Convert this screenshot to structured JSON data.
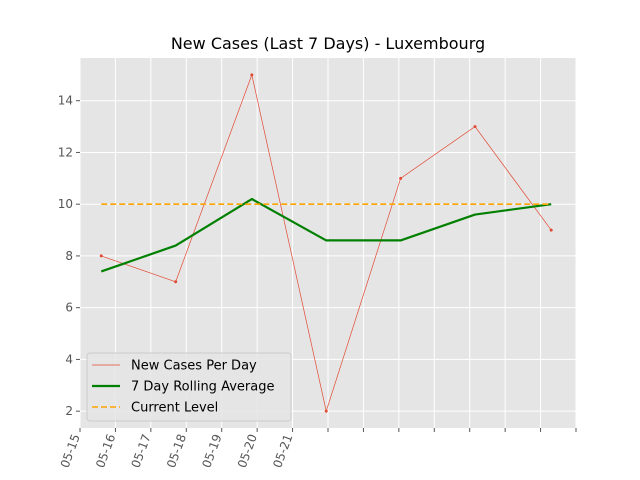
{
  "chart_data": {
    "type": "line",
    "title": "New Cases (Last 7 Days) - Luxembourg",
    "xlabel": "",
    "ylabel": "",
    "x_tick_labels": [
      "05-15",
      "05-16",
      "05-17",
      "05-18",
      "05-19",
      "05-20",
      "05-21"
    ],
    "y_ticks": [
      2,
      4,
      6,
      8,
      10,
      12,
      14
    ],
    "ylim": [
      1.35,
      15.65
    ],
    "grid": true,
    "legend_position": "lower-left",
    "x_day_offsets": [
      0.6,
      2.7,
      4.85,
      6.95,
      9.05,
      11.15,
      13.3
    ],
    "series": [
      {
        "name": "New Cases Per Day",
        "style": "thin-line-with-markers",
        "color": "#e24a33",
        "values": [
          8,
          7,
          15,
          2,
          11,
          13,
          9
        ]
      },
      {
        "name": "7 Day Rolling Average",
        "style": "thick-line",
        "color": "#008000",
        "values": [
          7.4,
          8.4,
          10.2,
          8.6,
          8.6,
          9.6,
          10.0
        ]
      },
      {
        "name": "Current Level",
        "style": "dashed-line",
        "color": "#ffa500",
        "values": [
          10,
          10,
          10,
          10,
          10,
          10,
          10
        ]
      }
    ]
  }
}
